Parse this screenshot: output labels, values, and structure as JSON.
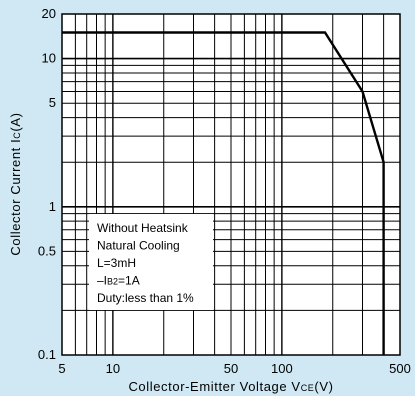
{
  "chart_data": {
    "type": "line",
    "title": "",
    "xlabel": "Collector-Emitter Voltage V",
    "xlabel_sub": "CE",
    "xlabel_suffix": "(V)",
    "ylabel": "Collector Current I",
    "ylabel_sub": "C",
    "ylabel_suffix": "(A)",
    "x_scale": "log",
    "y_scale": "log",
    "xlim": [
      5,
      500
    ],
    "ylim": [
      0.1,
      20
    ],
    "grid": true,
    "x_ticks": [
      {
        "value": 5,
        "label": "5"
      },
      {
        "value": 10,
        "label": "10"
      },
      {
        "value": 50,
        "label": "50"
      },
      {
        "value": 100,
        "label": "100"
      },
      {
        "value": 500,
        "label": "500"
      }
    ],
    "y_ticks": [
      {
        "value": 0.1,
        "label": "0.1"
      },
      {
        "value": 0.5,
        "label": "0.5"
      },
      {
        "value": 1,
        "label": "1"
      },
      {
        "value": 5,
        "label": "5"
      },
      {
        "value": 10,
        "label": "10"
      },
      {
        "value": 20,
        "label": "20"
      }
    ],
    "series": [
      {
        "points": [
          {
            "x": 5,
            "y": 15
          },
          {
            "x": 180,
            "y": 15
          },
          {
            "x": 300,
            "y": 6
          },
          {
            "x": 400,
            "y": 2
          },
          {
            "x": 400,
            "y": 0.1
          }
        ]
      }
    ],
    "annotation": {
      "lines": [
        {
          "text": "Without Heatsink"
        },
        {
          "text": "Natural Cooling"
        },
        {
          "text": "L=3mH"
        },
        {
          "prefix": "–I",
          "sub": "B2",
          "suffix": "=1A"
        },
        {
          "text": "Duty:less than 1%"
        }
      ]
    },
    "colors": {
      "background": "#cfe8f3",
      "plot_background": "#ffffff",
      "grid": "#000000",
      "line": "#000000"
    }
  }
}
